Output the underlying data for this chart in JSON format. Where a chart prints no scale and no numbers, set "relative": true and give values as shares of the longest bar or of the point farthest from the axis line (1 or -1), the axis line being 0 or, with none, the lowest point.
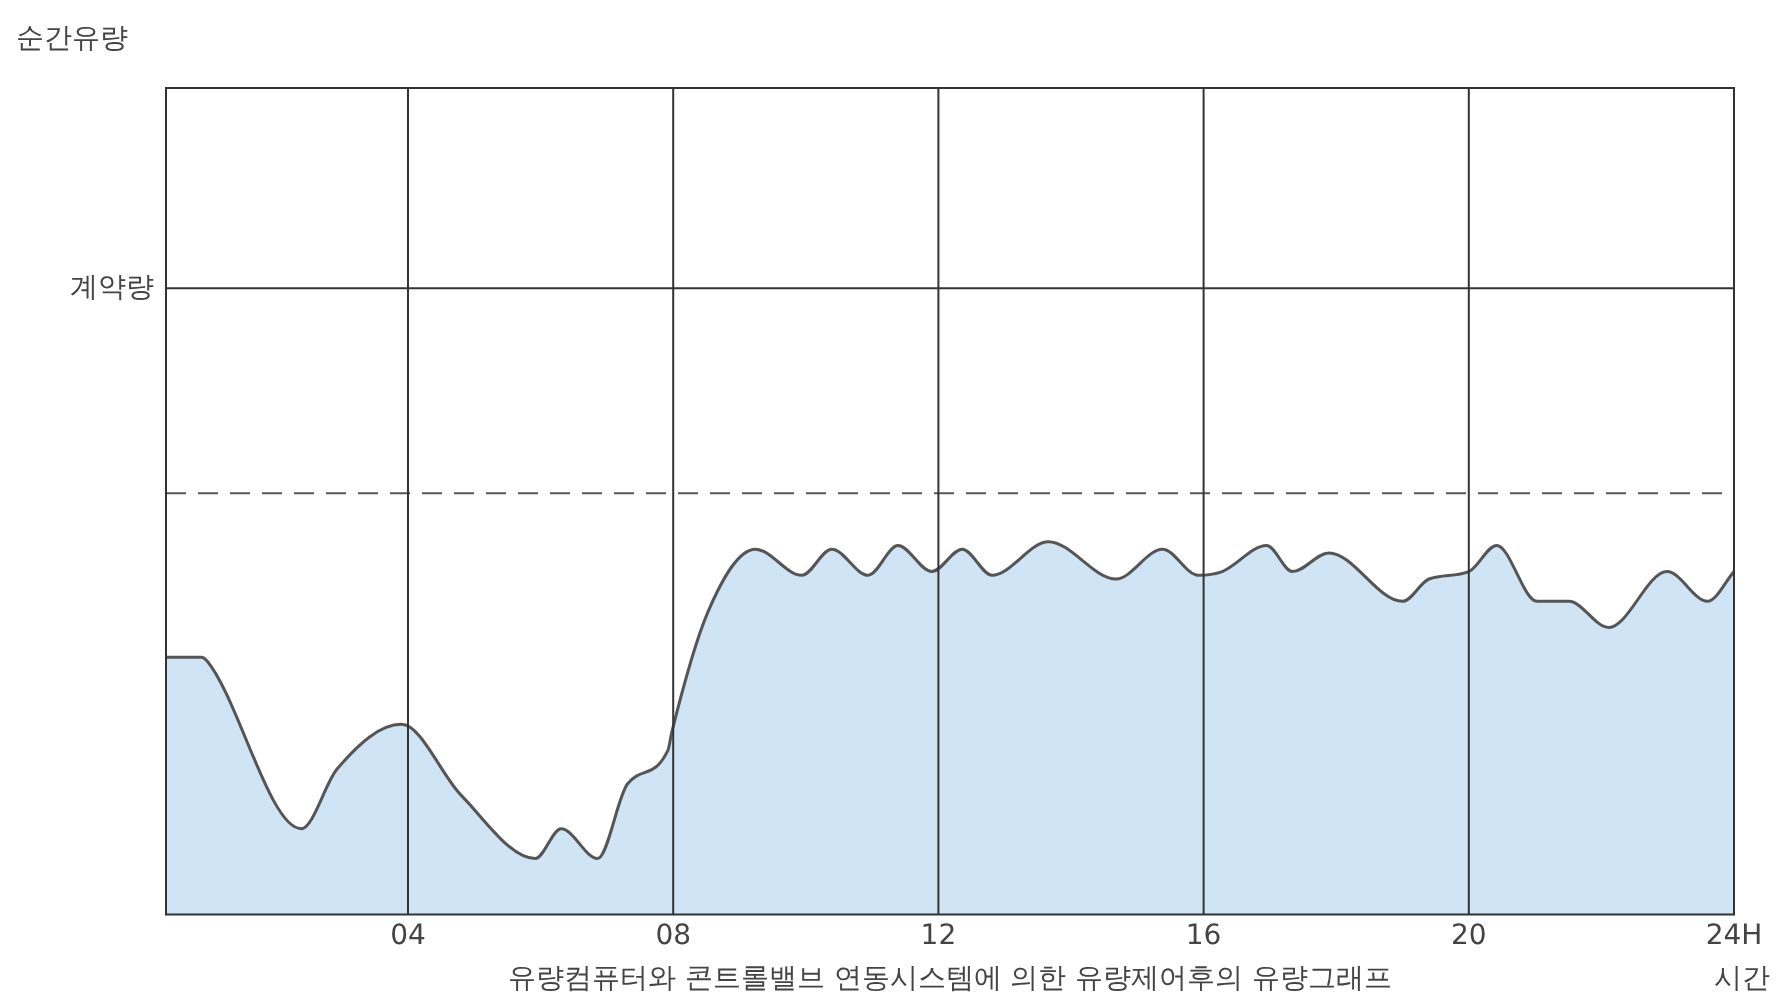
{
  "chart_data": {
    "type": "area",
    "xlabel": "시간",
    "annotations": [
      "순간유량",
      "유량컴퓨터와 콘트롤밸브 연동시스템에 의한 유량제어후의 유량그래프"
    ],
    "relative": true,
    "xlim": [
      0.35,
      24
    ],
    "xticks": [
      {
        "value": 4,
        "label": "04"
      },
      {
        "value": 8,
        "label": "08"
      },
      {
        "value": 12,
        "label": "12"
      },
      {
        "value": 16,
        "label": "16"
      },
      {
        "value": 20,
        "label": "20"
      },
      {
        "value": 24,
        "label": "24H"
      }
    ],
    "grid": "x",
    "legend": false,
    "marker": "none",
    "line_style": "solid",
    "ref_lines": [
      {
        "axis": "y",
        "value": 1.68,
        "label": "계약량",
        "line_style": "solid",
        "color": "#333333"
      },
      {
        "axis": "y",
        "value": 1.13,
        "label": null,
        "line_style": "dashed",
        "color": "#555555"
      }
    ],
    "series": [
      {
        "color": "#cfe4f5",
        "x": [
          0.35,
          0.88,
          0.97,
          2.39,
          2.93,
          3.9,
          4.8,
          5.92,
          6.31,
          6.86,
          7.31,
          7.92,
          7.98,
          8.52,
          9.24,
          9.94,
          10.39,
          10.94,
          11.39,
          11.9,
          12.36,
          12.81,
          13.66,
          14.68,
          15.38,
          15.92,
          16.28,
          16.95,
          17.34,
          17.89,
          19.0,
          19.4,
          20.0,
          20.42,
          21.03,
          21.51,
          22.11,
          22.99,
          23.6,
          24
        ],
        "values": [
          0.69,
          0.69,
          0.68,
          0.23,
          0.39,
          0.51,
          0.32,
          0.15,
          0.23,
          0.15,
          0.35,
          0.44,
          0.49,
          0.81,
          0.98,
          0.91,
          0.98,
          0.91,
          0.99,
          0.92,
          0.98,
          0.91,
          1,
          0.9,
          0.98,
          0.91,
          0.92,
          0.99,
          0.92,
          0.97,
          0.84,
          0.9,
          0.92,
          0.99,
          0.84,
          0.84,
          0.77,
          0.92,
          0.84,
          0.92
        ]
      }
    ]
  }
}
